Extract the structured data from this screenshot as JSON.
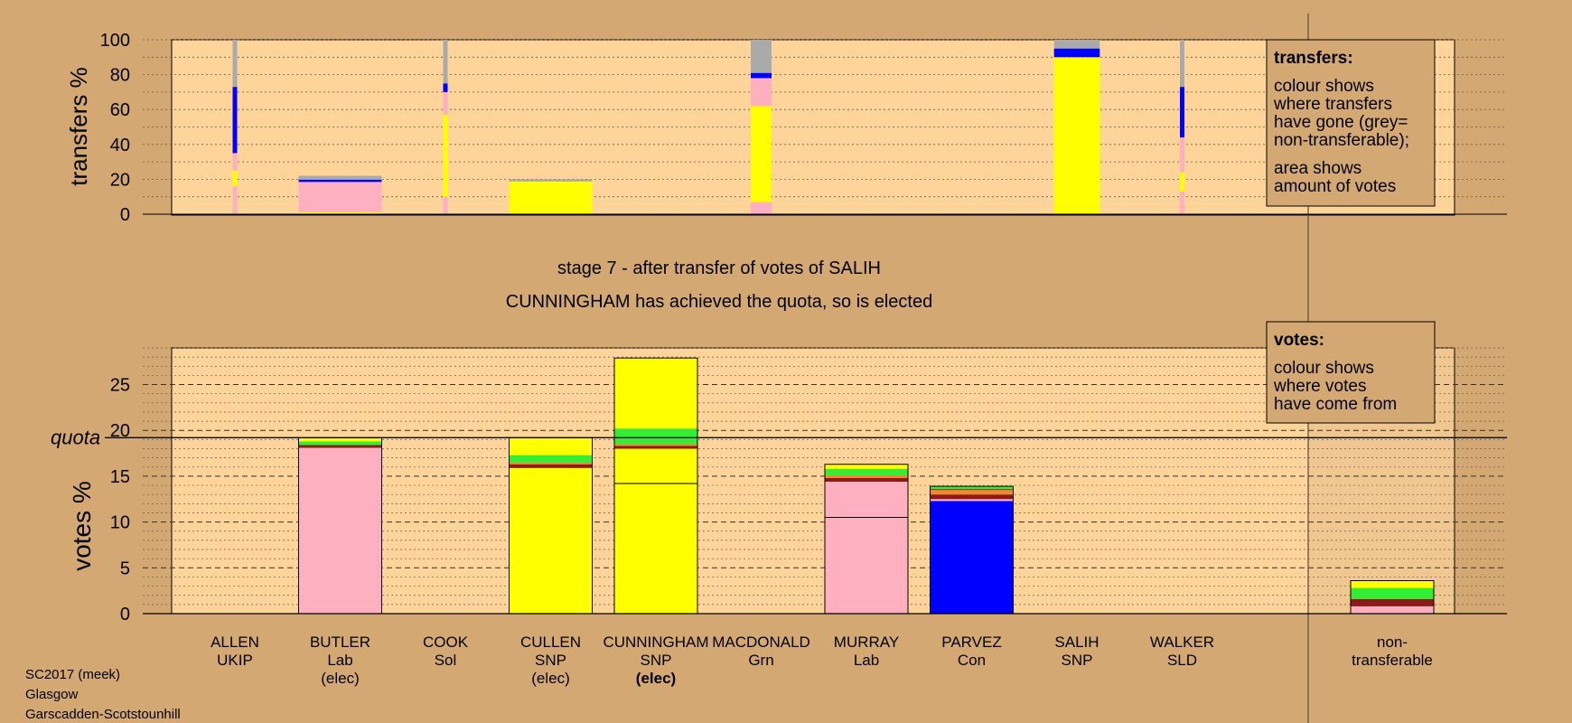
{
  "chart_data": {
    "type": "bar",
    "title": "stage 7 - after transfer of votes of SALIH",
    "subtitle": "CUNNINGHAM has achieved the quota, so is elected",
    "categories": [
      "ALLEN",
      "BUTLER",
      "COOK",
      "CULLEN",
      "CUNNINGHAM",
      "MACDONALD",
      "MURRAY",
      "PARVEZ",
      "SALIH",
      "WALKER",
      "non-"
    ],
    "candidates": [
      {
        "name": "ALLEN",
        "party": "UKIP",
        "status": ""
      },
      {
        "name": "BUTLER",
        "party": "Lab",
        "status": "(elec)"
      },
      {
        "name": "COOK",
        "party": "Sol",
        "status": ""
      },
      {
        "name": "CULLEN",
        "party": "SNP",
        "status": "(elec)"
      },
      {
        "name": "CUNNINGHAM",
        "party": "SNP",
        "status": "(elec)"
      },
      {
        "name": "MACDONALD",
        "party": "Grn",
        "status": ""
      },
      {
        "name": "MURRAY",
        "party": "Lab",
        "status": ""
      },
      {
        "name": "PARVEZ",
        "party": "Con",
        "status": ""
      },
      {
        "name": "SALIH",
        "party": "SNP",
        "status": ""
      },
      {
        "name": "WALKER",
        "party": "SLD",
        "status": ""
      },
      {
        "name": "non-",
        "party": "transferable",
        "status": ""
      }
    ],
    "colors": {
      "pink": "#ffb0c0",
      "yellow": "#ffff00",
      "green": "#33ee33",
      "blue": "#0000ff",
      "darkred": "#8b1a1a",
      "orange": "#ee8833",
      "grey": "#aaaaaa",
      "plot_bg": "#ffd49b",
      "page_bg": "#d4a872",
      "legend_bg": "#d4a872"
    },
    "transfers": {
      "ylabel": "transfers %",
      "ylim": [
        0,
        100
      ],
      "yticks": [
        "0",
        "20",
        "40",
        "60",
        "80",
        "100"
      ],
      "bars": [
        {
          "cand": 0,
          "width": 0.05,
          "segments": [
            [
              "pink",
              0,
              16
            ],
            [
              "yellow",
              16,
              25
            ],
            [
              "pink",
              25,
              35
            ],
            [
              "blue",
              35,
              73
            ],
            [
              "grey",
              73,
              100
            ]
          ]
        },
        {
          "cand": 1,
          "width": 1,
          "scale": 22,
          "segments": [
            [
              "yellow",
              0,
              5
            ],
            [
              "pink",
              5,
              84
            ],
            [
              "blue",
              84,
              90
            ],
            [
              "grey",
              90,
              100
            ]
          ]
        },
        {
          "cand": 2,
          "width": 0.05,
          "segments": [
            [
              "pink",
              0,
              10
            ],
            [
              "yellow",
              10,
              57
            ],
            [
              "pink",
              57,
              70
            ],
            [
              "blue",
              70,
              75
            ],
            [
              "grey",
              75,
              100
            ]
          ]
        },
        {
          "cand": 3,
          "width": 1,
          "scale": 20,
          "segments": [
            [
              "yellow",
              0,
              94
            ],
            [
              "grey",
              94,
              100
            ]
          ]
        },
        {
          "cand": 5,
          "width": 0.25,
          "segments": [
            [
              "pink",
              0,
              7
            ],
            [
              "yellow",
              7,
              62
            ],
            [
              "pink",
              62,
              78
            ],
            [
              "blue",
              78,
              81
            ],
            [
              "grey",
              81,
              100
            ]
          ]
        },
        {
          "cand": 8,
          "width": 0.55,
          "segments": [
            [
              "yellow",
              0,
              90
            ],
            [
              "blue",
              90,
              95
            ],
            [
              "grey",
              95,
              100
            ]
          ]
        },
        {
          "cand": 9,
          "width": 0.05,
          "segments": [
            [
              "pink",
              0,
              13
            ],
            [
              "yellow",
              13,
              24
            ],
            [
              "pink",
              24,
              44
            ],
            [
              "blue",
              44,
              73
            ],
            [
              "grey",
              73,
              100
            ]
          ]
        }
      ]
    },
    "votes": {
      "ylabel": "votes %",
      "quota_label": "quota",
      "quota": 19.2,
      "ylim": [
        0,
        29
      ],
      "yticks": [
        "0",
        "5",
        "10",
        "15",
        "20",
        "25"
      ],
      "bars": [
        {
          "cand": 1,
          "segments": [
            [
              "pink",
              0,
              18.1
            ],
            [
              "darkred",
              18.1,
              18.4
            ],
            [
              "green",
              18.4,
              18.8
            ],
            [
              "yellow",
              18.8,
              19.2
            ]
          ],
          "lines": []
        },
        {
          "cand": 3,
          "segments": [
            [
              "yellow",
              0,
              15.9
            ],
            [
              "darkred",
              15.9,
              16.3
            ],
            [
              "orange",
              16.3,
              16.5
            ],
            [
              "green",
              16.5,
              17.3
            ],
            [
              "yellow",
              17.3,
              19.2
            ]
          ],
          "lines": []
        },
        {
          "cand": 4,
          "segments": [
            [
              "yellow",
              0,
              18.0
            ],
            [
              "darkred",
              18.0,
              18.3
            ],
            [
              "orange",
              18.3,
              18.5
            ],
            [
              "green",
              18.5,
              20.2
            ],
            [
              "yellow",
              20.2,
              27.9
            ]
          ],
          "lines": [
            14.2
          ]
        },
        {
          "cand": 6,
          "segments": [
            [
              "pink",
              0,
              14.4
            ],
            [
              "darkred",
              14.4,
              14.8
            ],
            [
              "orange",
              14.8,
              15.1
            ],
            [
              "green",
              15.1,
              15.8
            ],
            [
              "yellow",
              15.8,
              16.3
            ]
          ],
          "lines": [
            10.5
          ]
        },
        {
          "cand": 7,
          "segments": [
            [
              "blue",
              0,
              12.3
            ],
            [
              "pink",
              12.3,
              12.5
            ],
            [
              "darkred",
              12.5,
              13.0
            ],
            [
              "orange",
              13.0,
              13.5
            ],
            [
              "darkred",
              13.5,
              13.6
            ],
            [
              "green",
              13.6,
              13.9
            ]
          ],
          "lines": []
        },
        {
          "cand": 10,
          "segments": [
            [
              "pink",
              0,
              0.8
            ],
            [
              "darkred",
              0.8,
              1.6
            ],
            [
              "green",
              1.6,
              2.8
            ],
            [
              "yellow",
              2.8,
              3.6
            ]
          ],
          "lines": []
        }
      ]
    },
    "legend_transfers": {
      "title": "transfers:",
      "line1": "colour shows",
      "line2": "where transfers",
      "line3": "have gone (grey=",
      "line4": "non-transferable);",
      "line5": "area shows",
      "line6": "amount of votes"
    },
    "legend_votes": {
      "title": "votes:",
      "line1": "colour shows",
      "line2": "where votes",
      "line3": "have come from"
    }
  },
  "footer": {
    "line1": "SC2017 (meek)",
    "line2": "Glasgow",
    "line3": "Garscadden-Scotstounhill"
  }
}
